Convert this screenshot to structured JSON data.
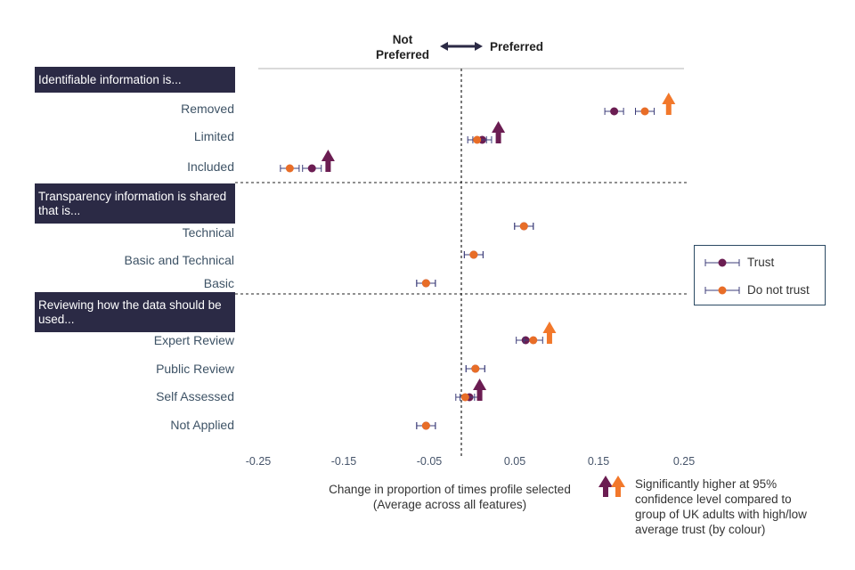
{
  "chart_data": {
    "type": "scatter",
    "direction_labels": {
      "left": "Not Preferred",
      "right": "Preferred"
    },
    "groups": [
      {
        "title": "Identifiable information is...",
        "categories": [
          "Removed",
          "Limited",
          "Included"
        ]
      },
      {
        "title": "Transparency information is shared  that is...",
        "categories": [
          "Technical",
          "Basic and Technical",
          "Basic"
        ]
      },
      {
        "title": "Reviewing how the data should be used...",
        "categories": [
          "Expert Review",
          "Public Review",
          "Self Assessed",
          "Not Applied"
        ]
      }
    ],
    "categories": [
      "Removed",
      "Limited",
      "Included",
      "Technical",
      "Basic and Technical",
      "Basic",
      "Expert Review",
      "Public Review",
      "Self Assessed",
      "Not Applied"
    ],
    "series": [
      {
        "name": "Trust",
        "color": "#6b1d52",
        "values": [
          0.168,
          0.013,
          -0.187,
          0.062,
          0.003,
          -0.053,
          0.064,
          0.005,
          -0.002,
          -0.053
        ],
        "errors": [
          0.011,
          0.011,
          0.011,
          0.011,
          0.011,
          0.011,
          0.011,
          0.011,
          0.011,
          0.011
        ]
      },
      {
        "name": "Do not trust",
        "color": "#e86d27",
        "values": [
          0.204,
          0.007,
          -0.213,
          0.062,
          0.003,
          -0.053,
          0.073,
          0.005,
          -0.007,
          -0.053
        ],
        "errors": [
          0.011,
          0.011,
          0.011,
          0.011,
          0.011,
          0.011,
          0.011,
          0.011,
          0.011,
          0.011
        ]
      }
    ],
    "significance_arrows": [
      {
        "category": "Removed",
        "series": "Do not trust",
        "x": 0.232
      },
      {
        "category": "Limited",
        "series": "Trust",
        "x": 0.032
      },
      {
        "category": "Included",
        "series": "Trust",
        "x": -0.168
      },
      {
        "category": "Expert Review",
        "series": "Do not trust",
        "x": 0.092
      },
      {
        "category": "Self Assessed",
        "series": "Trust",
        "x": 0.01
      }
    ],
    "xticks": [
      "-0.25",
      "-0.15",
      "-0.05",
      "0.05",
      "0.15",
      "0.25"
    ],
    "xlim": [
      -0.25,
      0.25
    ],
    "xlabel_line1": "Change in proportion of times profile selected",
    "xlabel_line2": "(Average across all features)",
    "legend_position": "right",
    "note": "Significantly higher at 95% confidence level compared to group of UK adults with high/low average trust (by colour)",
    "arrow_colors": {
      "trust": "#6b1d52",
      "do_not_trust": "#f2782b"
    }
  }
}
